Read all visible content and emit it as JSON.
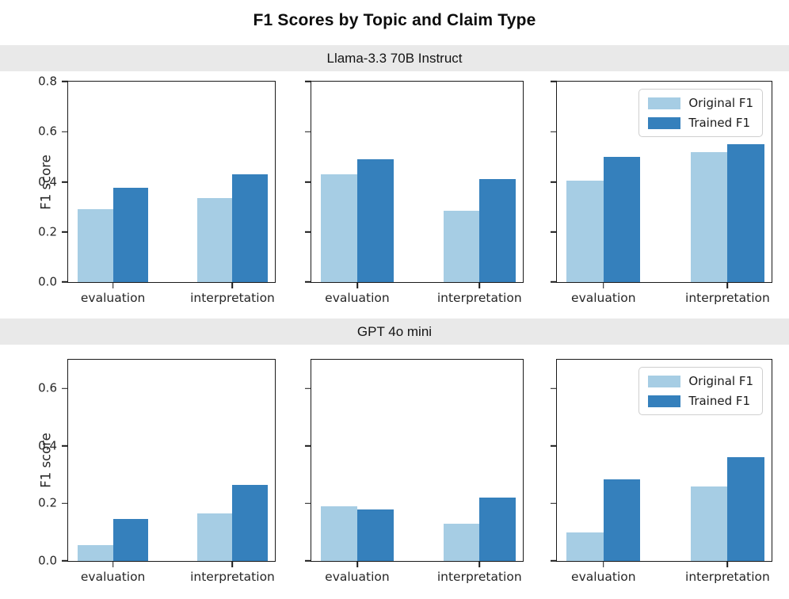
{
  "title": "F1 Scores by Topic and Claim Type",
  "colors": {
    "original": "#a6cde4",
    "trained": "#3580bc",
    "band_bg": "#e9e9e9",
    "spine": "#1a1a1a"
  },
  "legend": {
    "items": [
      {
        "label": "Original F1",
        "color_key": "original"
      },
      {
        "label": "Trained F1",
        "color_key": "trained"
      }
    ]
  },
  "chart_data": [
    {
      "type": "bar",
      "group_title": "Llama-3.3 70B Instruct",
      "ylabel": "F1 score",
      "ylim": [
        0,
        0.8
      ],
      "yticks": [
        0.0,
        0.2,
        0.4,
        0.6,
        0.8
      ],
      "categories": [
        "evaluation",
        "interpretation"
      ],
      "legend_position": "upper right of third subplot",
      "grid": false,
      "subplots": [
        {
          "series": [
            {
              "name": "Original F1",
              "values": [
                0.29,
                0.335
              ]
            },
            {
              "name": "Trained F1",
              "values": [
                0.375,
                0.43
              ]
            }
          ],
          "legend": false
        },
        {
          "series": [
            {
              "name": "Original F1",
              "values": [
                0.43,
                0.285
              ]
            },
            {
              "name": "Trained F1",
              "values": [
                0.49,
                0.41
              ]
            }
          ],
          "legend": false
        },
        {
          "series": [
            {
              "name": "Original F1",
              "values": [
                0.405,
                0.52
              ]
            },
            {
              "name": "Trained F1",
              "values": [
                0.5,
                0.55
              ]
            }
          ],
          "legend": true
        }
      ]
    },
    {
      "type": "bar",
      "group_title": "GPT 4o mini",
      "ylabel": "F1 score",
      "ylim": [
        0,
        0.7
      ],
      "yticks": [
        0.0,
        0.2,
        0.4,
        0.6
      ],
      "categories": [
        "evaluation",
        "interpretation"
      ],
      "legend_position": "upper right of third subplot",
      "grid": false,
      "subplots": [
        {
          "series": [
            {
              "name": "Original F1",
              "values": [
                0.055,
                0.165
              ]
            },
            {
              "name": "Trained F1",
              "values": [
                0.145,
                0.265
              ]
            }
          ],
          "legend": false
        },
        {
          "series": [
            {
              "name": "Original F1",
              "values": [
                0.19,
                0.13
              ]
            },
            {
              "name": "Trained F1",
              "values": [
                0.18,
                0.22
              ]
            }
          ],
          "legend": false
        },
        {
          "series": [
            {
              "name": "Original F1",
              "values": [
                0.1,
                0.26
              ]
            },
            {
              "name": "Trained F1",
              "values": [
                0.285,
                0.36
              ]
            }
          ],
          "legend": true
        }
      ]
    }
  ]
}
